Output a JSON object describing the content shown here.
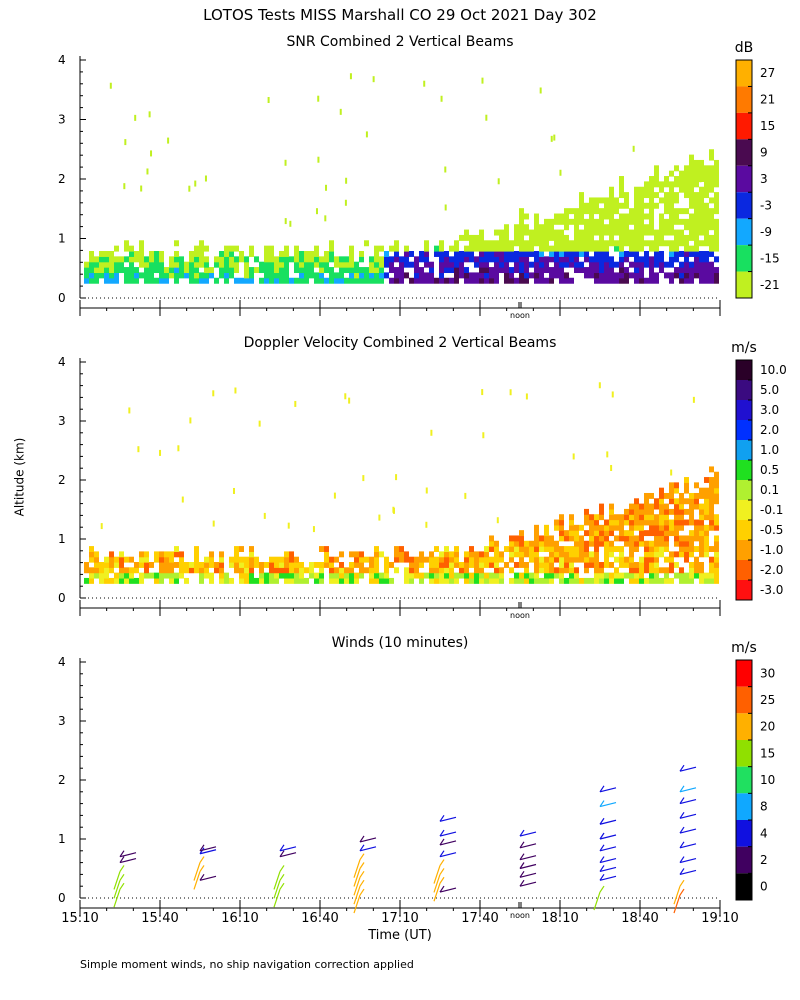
{
  "figure": {
    "title": "LOTOS Tests MISS Marshall CO  29 Oct 2021 Day 302",
    "xlabel": "Time (UT)",
    "ylabel": "Altitude (km)",
    "footnote": "Simple moment winds, no ship navigation correction applied",
    "noon_label": "noon",
    "x_ticks": [
      "15:10",
      "15:40",
      "16:10",
      "16:40",
      "17:10",
      "17:40",
      "18:10",
      "18:40",
      "19:10"
    ],
    "y_ticks": [
      "0",
      "1",
      "2",
      "3",
      "4"
    ]
  },
  "chart_data": [
    {
      "type": "heatmap",
      "id": "snr",
      "title": "SNR Combined 2 Vertical Beams",
      "unit": "dB",
      "xlim": [
        "15:10",
        "19:10"
      ],
      "ylim": [
        0,
        4
      ],
      "colorbar_labels": [
        "27",
        "21",
        "15",
        "9",
        "3",
        "-3",
        "-9",
        "-15",
        "-21"
      ],
      "colorbar_colors": [
        "#ffb000",
        "#ff7a00",
        "#ff1a00",
        "#4a0a50",
        "#5a0aa0",
        "#0a28e0",
        "#12a8ff",
        "#18e060",
        "#c0f020"
      ],
      "noon_time": "17:55"
    },
    {
      "type": "heatmap",
      "id": "doppler",
      "title": "Doppler Velocity Combined 2 Vertical Beams",
      "unit": "m/s",
      "xlim": [
        "15:10",
        "19:10"
      ],
      "ylim": [
        0,
        4
      ],
      "colorbar_labels": [
        "10.0",
        "5.0",
        "3.0",
        "2.0",
        "1.0",
        "0.5",
        "0.1",
        "-0.1",
        "-0.5",
        "-1.0",
        "-2.0",
        "-3.0"
      ],
      "colorbar_colors": [
        "#2a0028",
        "#3a0a80",
        "#2010d0",
        "#0030ff",
        "#10a0f0",
        "#20e020",
        "#b0f030",
        "#f0f020",
        "#ffd000",
        "#ffa000",
        "#ff6000",
        "#ff1010"
      ],
      "noon_time": "17:55"
    },
    {
      "type": "scatter",
      "id": "winds",
      "title": "Winds (10 minutes)",
      "unit": "m/s",
      "xlim": [
        "15:10",
        "19:10"
      ],
      "ylim": [
        0,
        4
      ],
      "colorbar_labels": [
        "30",
        "25",
        "20",
        "15",
        "10",
        "8",
        "4",
        "2",
        "0"
      ],
      "colorbar_colors": [
        "#ff0000",
        "#ff6000",
        "#ffb000",
        "#90e000",
        "#20e060",
        "#10a8ff",
        "#1010e0",
        "#400060",
        "#000000"
      ],
      "noon_time": "17:55",
      "profiles": [
        {
          "time": "15:25",
          "barbs": [
            {
              "alt": 0.15,
              "speed": 16
            },
            {
              "alt": 0.3,
              "speed": 18
            },
            {
              "alt": 0.45,
              "speed": 17
            },
            {
              "alt": 0.6,
              "speed": 3
            },
            {
              "alt": 0.7,
              "speed": 2
            }
          ]
        },
        {
          "time": "15:55",
          "barbs": [
            {
              "alt": 0.3,
              "speed": 3
            },
            {
              "alt": 0.45,
              "speed": 24
            },
            {
              "alt": 0.6,
              "speed": 21
            },
            {
              "alt": 0.75,
              "speed": 4
            },
            {
              "alt": 0.8,
              "speed": 3
            }
          ]
        },
        {
          "time": "16:25",
          "barbs": [
            {
              "alt": 0.15,
              "speed": 17
            },
            {
              "alt": 0.3,
              "speed": 18
            },
            {
              "alt": 0.45,
              "speed": 16
            },
            {
              "alt": 0.7,
              "speed": 3
            },
            {
              "alt": 0.8,
              "speed": 4
            }
          ]
        },
        {
          "time": "16:55",
          "barbs": [
            {
              "alt": 0.05,
              "speed": 22
            },
            {
              "alt": 0.2,
              "speed": 24
            },
            {
              "alt": 0.35,
              "speed": 24
            },
            {
              "alt": 0.5,
              "speed": 22
            },
            {
              "alt": 0.65,
              "speed": 20
            },
            {
              "alt": 0.8,
              "speed": 4
            },
            {
              "alt": 0.95,
              "speed": 3
            }
          ]
        },
        {
          "time": "17:25",
          "barbs": [
            {
              "alt": 0.1,
              "speed": 3
            },
            {
              "alt": 0.25,
              "speed": 22
            },
            {
              "alt": 0.4,
              "speed": 23
            },
            {
              "alt": 0.55,
              "speed": 21
            },
            {
              "alt": 0.7,
              "speed": 4
            },
            {
              "alt": 0.9,
              "speed": 3
            },
            {
              "alt": 1.05,
              "speed": 4
            },
            {
              "alt": 1.3,
              "speed": 5
            }
          ]
        },
        {
          "time": "17:55",
          "barbs": [
            {
              "alt": 0.2,
              "speed": 2
            },
            {
              "alt": 0.35,
              "speed": 3
            },
            {
              "alt": 0.5,
              "speed": 2
            },
            {
              "alt": 0.65,
              "speed": 3
            },
            {
              "alt": 0.85,
              "speed": 3
            },
            {
              "alt": 1.05,
              "speed": 4
            }
          ]
        },
        {
          "time": "18:25",
          "barbs": [
            {
              "alt": 0.1,
              "speed": 16
            },
            {
              "alt": 0.3,
              "speed": 4
            },
            {
              "alt": 0.45,
              "speed": 5
            },
            {
              "alt": 0.6,
              "speed": 5
            },
            {
              "alt": 0.8,
              "speed": 4
            },
            {
              "alt": 1.0,
              "speed": 5
            },
            {
              "alt": 1.25,
              "speed": 6
            },
            {
              "alt": 1.55,
              "speed": 8
            },
            {
              "alt": 1.8,
              "speed": 5
            }
          ]
        },
        {
          "time": "18:55",
          "barbs": [
            {
              "alt": 0.05,
              "speed": 27
            },
            {
              "alt": 0.2,
              "speed": 24
            },
            {
              "alt": 0.4,
              "speed": 4
            },
            {
              "alt": 0.6,
              "speed": 5
            },
            {
              "alt": 0.85,
              "speed": 5
            },
            {
              "alt": 1.1,
              "speed": 6
            },
            {
              "alt": 1.35,
              "speed": 5
            },
            {
              "alt": 1.6,
              "speed": 5
            },
            {
              "alt": 1.8,
              "speed": 9
            },
            {
              "alt": 2.15,
              "speed": 5
            }
          ]
        }
      ]
    }
  ]
}
